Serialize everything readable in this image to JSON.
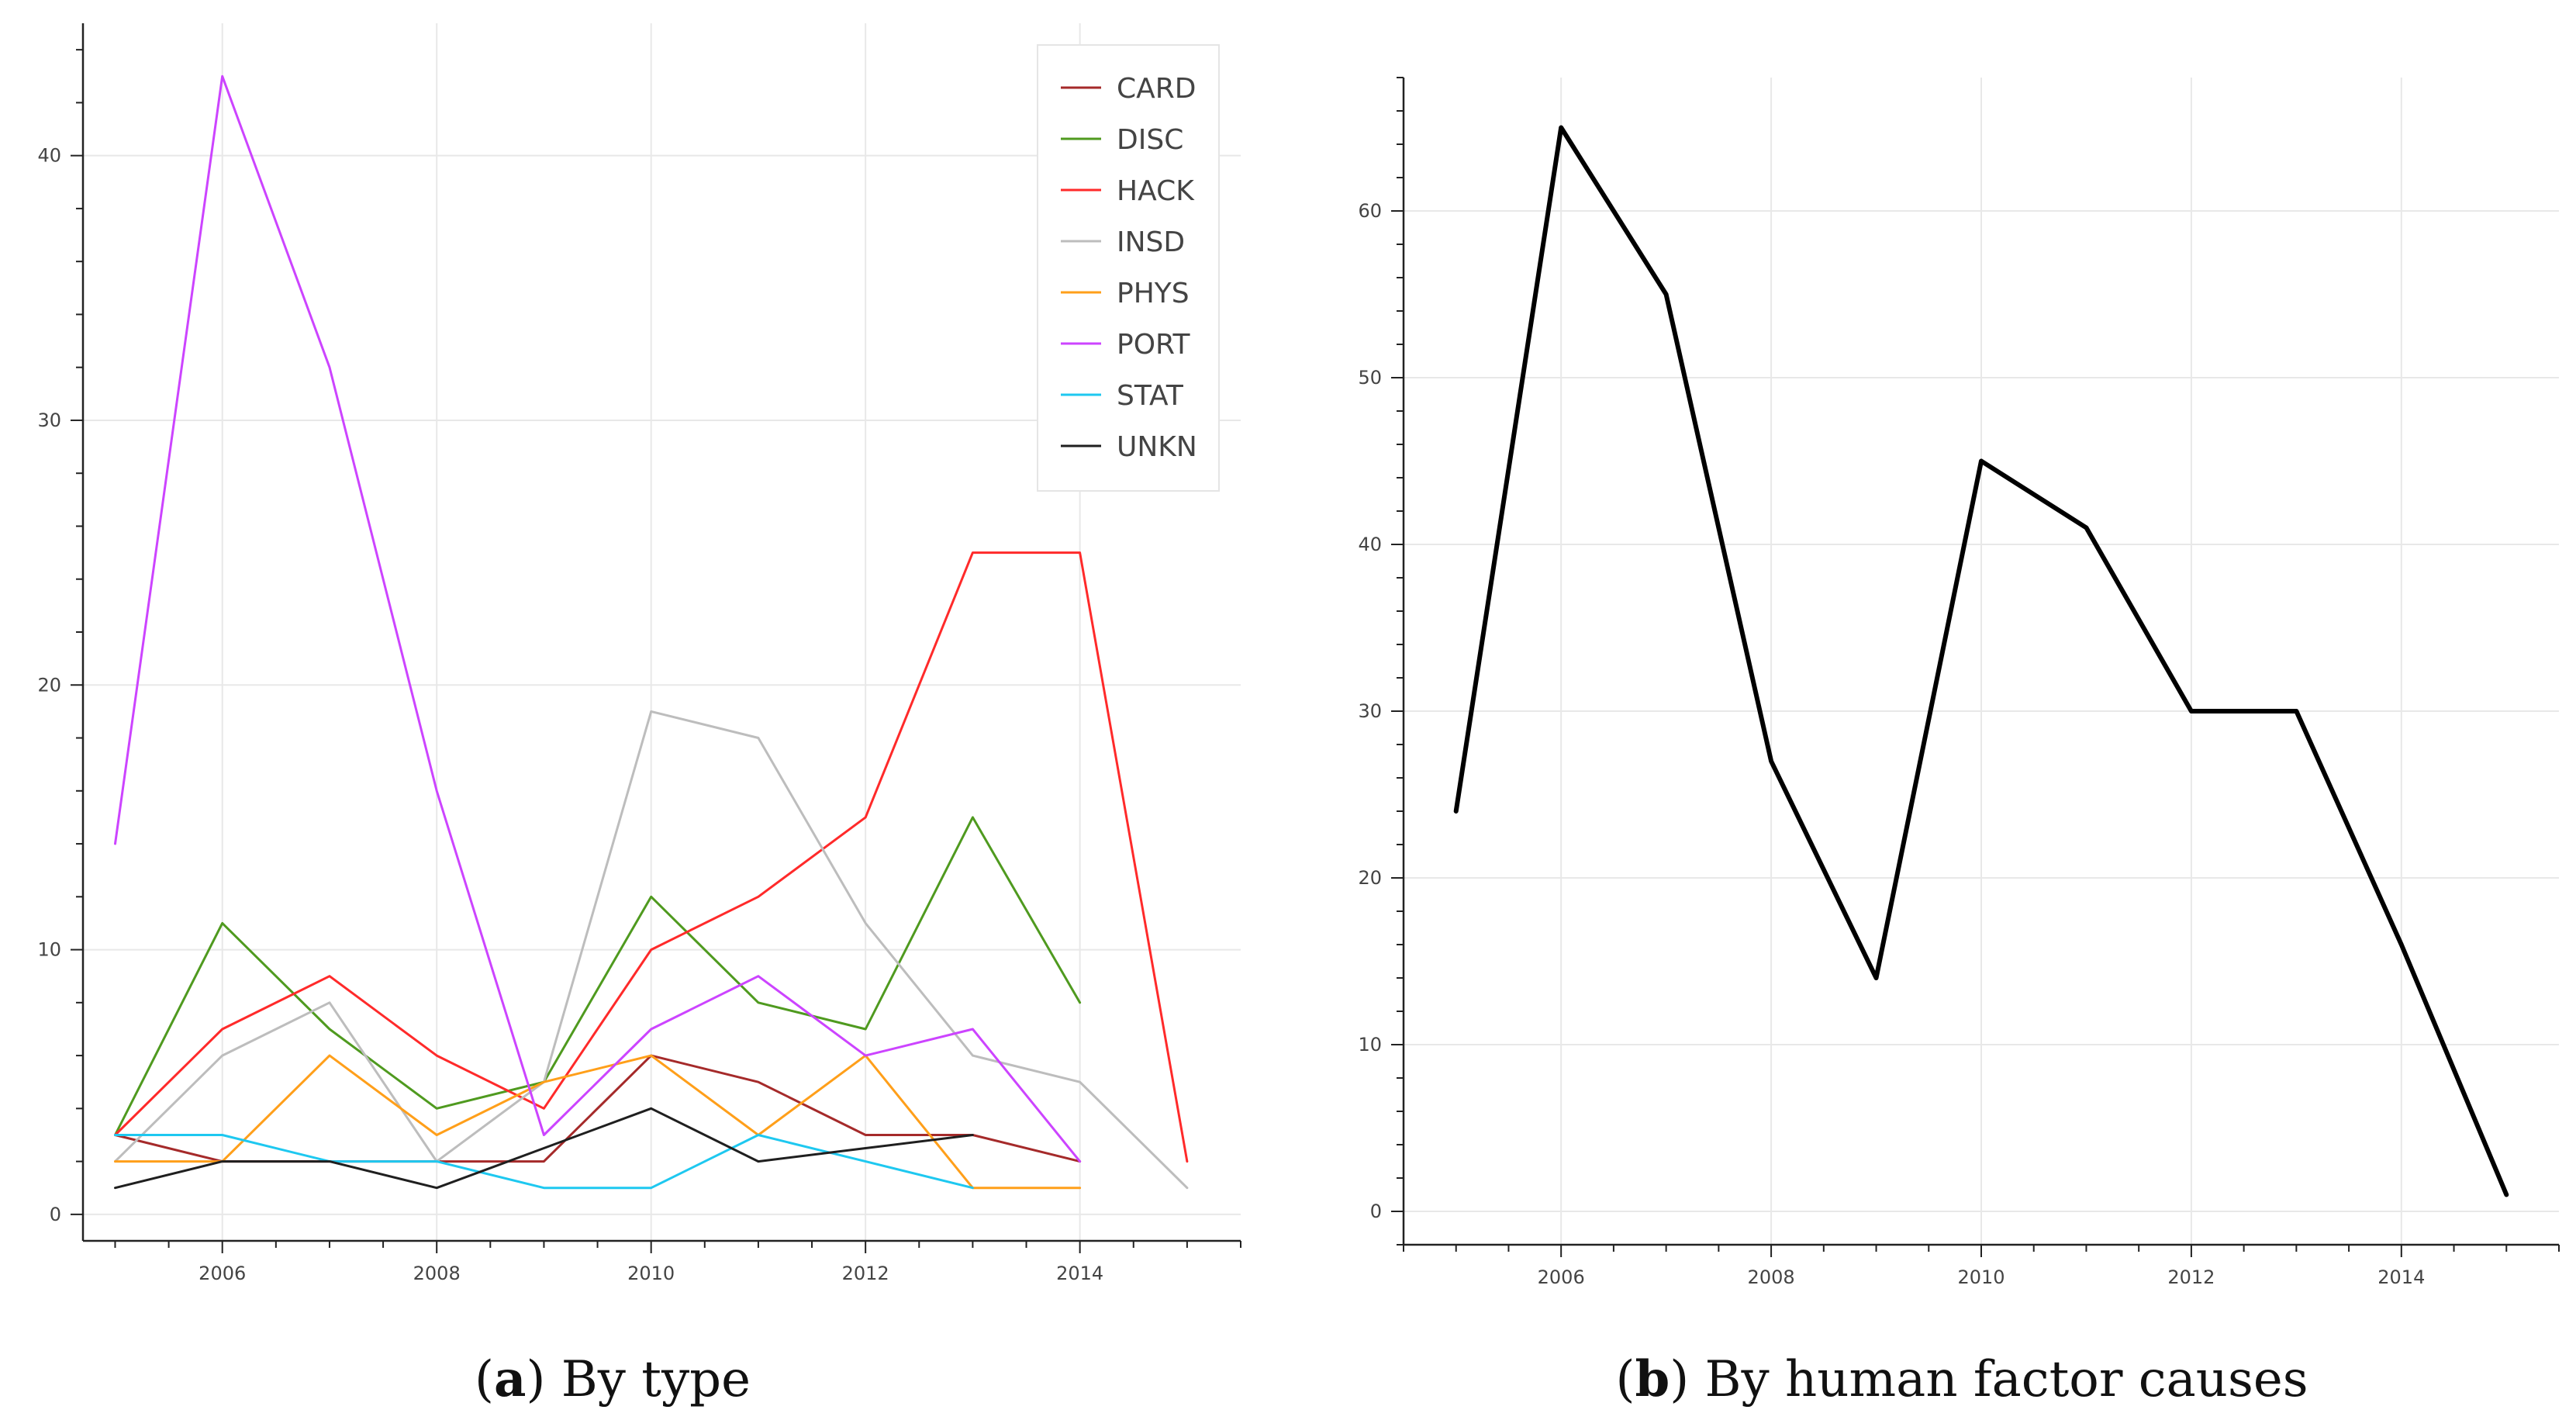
{
  "chart_data": [
    {
      "type": "line",
      "caption_letter": "a",
      "caption_text": "By type",
      "x": [
        2005,
        2006,
        2007,
        2008,
        2009,
        2010,
        2011,
        2012,
        2013,
        2014,
        2015
      ],
      "xlim": [
        2004.7,
        2015.5
      ],
      "ylim": [
        -1,
        45
      ],
      "xticks": [
        2006,
        2008,
        2010,
        2012,
        2014
      ],
      "yticks": [
        0,
        10,
        20,
        30,
        40
      ],
      "grid": true,
      "legend_position": "top-right",
      "series": [
        {
          "name": "CARD",
          "color": "#a52a2a",
          "values": [
            3,
            2,
            2,
            2,
            2,
            6,
            5,
            3,
            3,
            2,
            null
          ]
        },
        {
          "name": "DISC",
          "color": "#4f9a1f",
          "values": [
            3,
            11,
            7,
            4,
            5,
            12,
            8,
            7,
            15,
            8,
            null
          ]
        },
        {
          "name": "HACK",
          "color": "#ff2a2a",
          "values": [
            3,
            7,
            9,
            6,
            4,
            10,
            12,
            15,
            25,
            25,
            2
          ]
        },
        {
          "name": "INSD",
          "color": "#bdbdbd",
          "values": [
            2,
            6,
            8,
            2,
            5,
            19,
            18,
            11,
            6,
            5,
            1
          ]
        },
        {
          "name": "PHYS",
          "color": "#ff9f1a",
          "values": [
            2,
            2,
            6,
            3,
            5,
            6,
            3,
            6,
            1,
            1,
            null
          ]
        },
        {
          "name": "PORT",
          "color": "#cc44ff",
          "values": [
            14,
            43,
            32,
            16,
            3,
            7,
            9,
            6,
            7,
            2,
            null
          ]
        },
        {
          "name": "STAT",
          "color": "#1ec8f0",
          "values": [
            3,
            3,
            2,
            2,
            1,
            1,
            3,
            2,
            1,
            null,
            null
          ]
        },
        {
          "name": "UNKN",
          "color": "#1f1f1f",
          "values": [
            1,
            2,
            2,
            1,
            2.5,
            4,
            2,
            2.5,
            3,
            null,
            null
          ]
        }
      ]
    },
    {
      "type": "line",
      "caption_letter": "b",
      "caption_text": "By human factor causes",
      "x": [
        2005,
        2006,
        2007,
        2008,
        2009,
        2010,
        2011,
        2012,
        2013,
        2014,
        2015
      ],
      "xlim": [
        2004.5,
        2015.5
      ],
      "ylim": [
        -2,
        68
      ],
      "xticks": [
        2006,
        2008,
        2010,
        2012,
        2014
      ],
      "yticks": [
        0,
        10,
        20,
        30,
        40,
        50,
        60
      ],
      "grid": true,
      "series": [
        {
          "name": "Human factor causes",
          "color": "#000000",
          "values": [
            24,
            65,
            55,
            27,
            14,
            45,
            41,
            30,
            30,
            16,
            1
          ]
        }
      ]
    }
  ]
}
